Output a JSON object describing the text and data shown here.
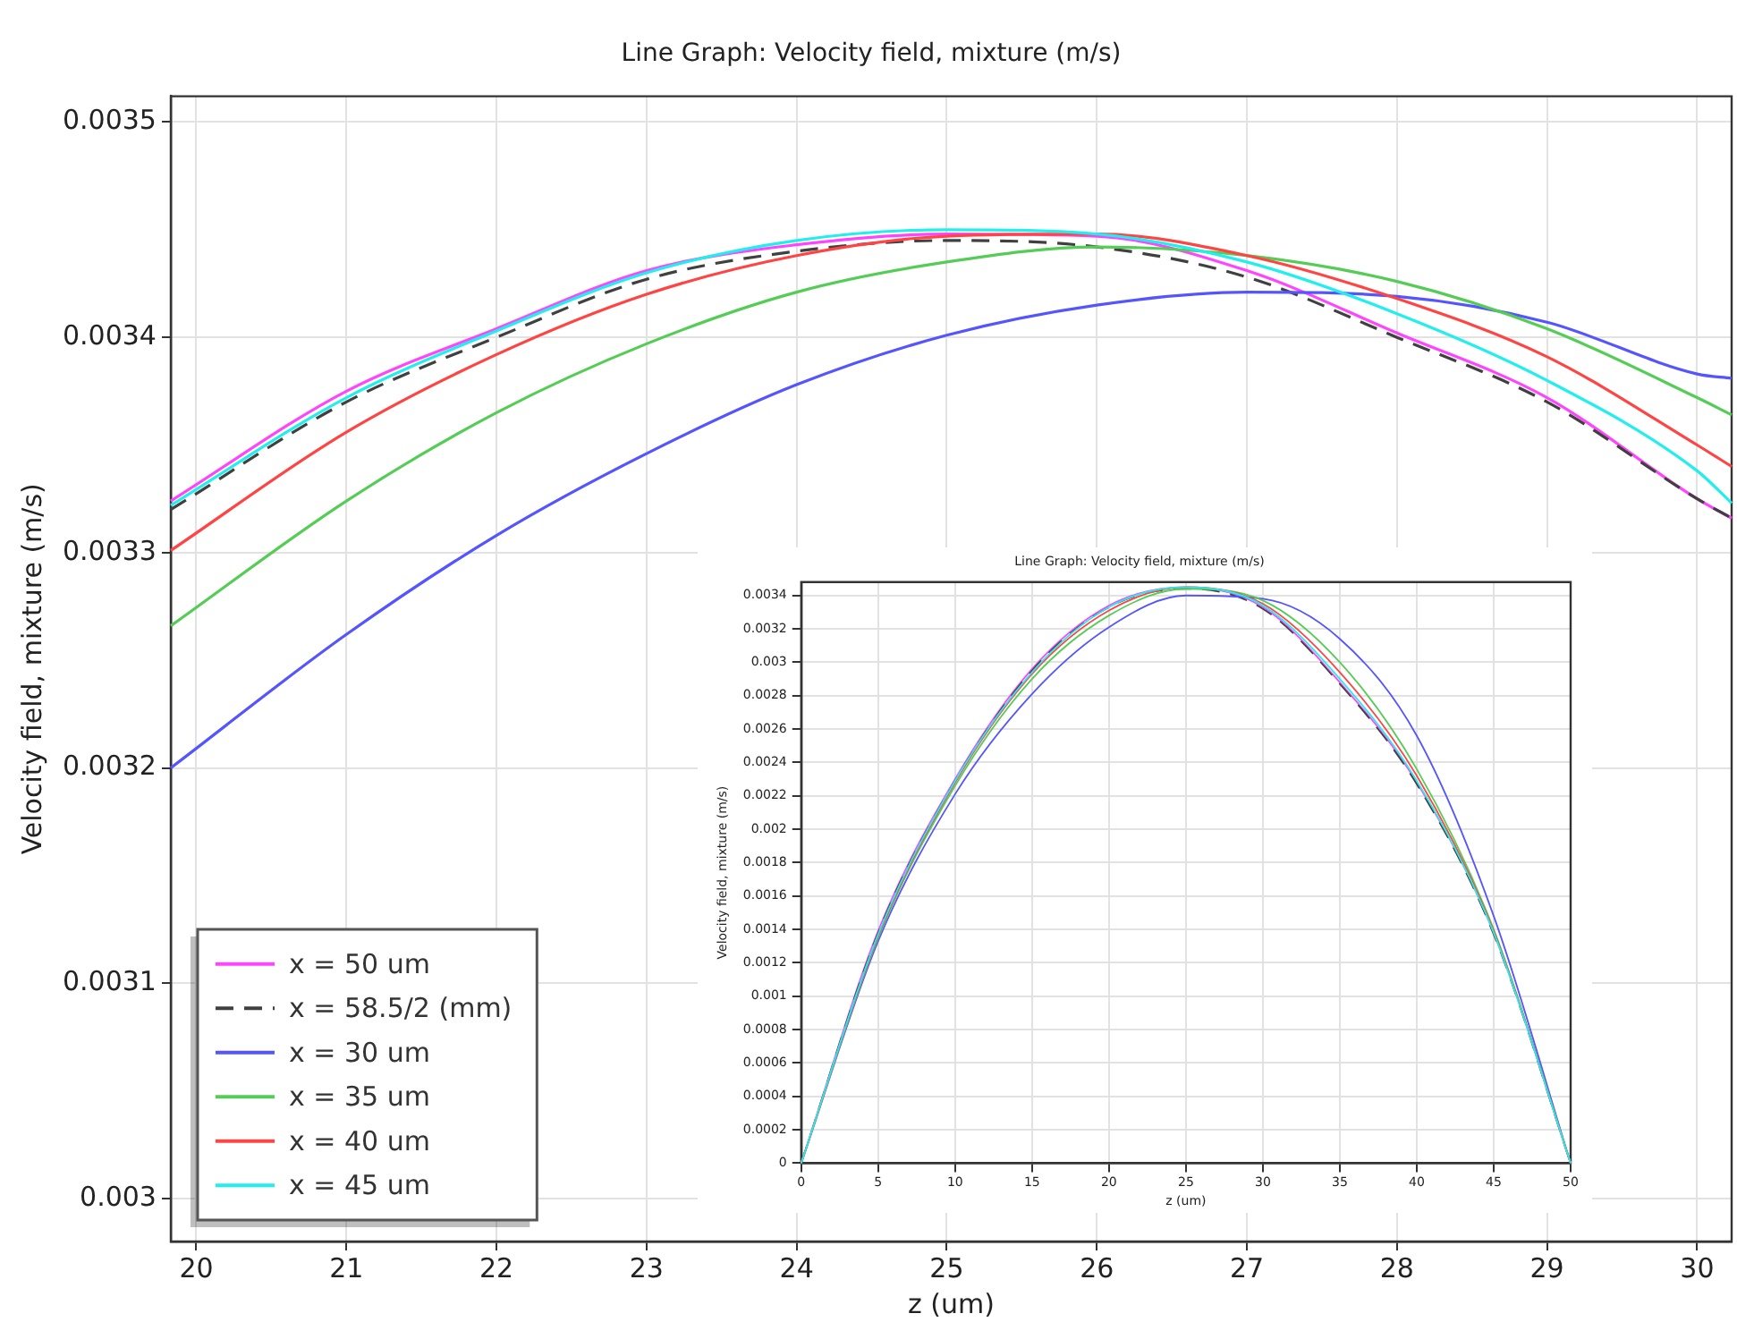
{
  "chart_data": [
    {
      "type": "line",
      "title": "Line Graph: Velocity field, mixture (m/s)",
      "xlabel": "z (um)",
      "ylabel": "Velocity field, mixture (m/s)",
      "x": [
        19.83,
        21,
        22,
        23,
        24,
        25,
        26,
        27,
        28,
        29,
        30,
        30.23
      ],
      "xlim": [
        19.83,
        30.23
      ],
      "xticks": [
        20,
        21,
        22,
        23,
        24,
        25,
        26,
        27,
        28,
        29,
        30
      ],
      "ylim": [
        0.00298,
        0.003512
      ],
      "yticks": [
        0.003,
        0.0031,
        0.0032,
        0.0033,
        0.0034,
        0.0035
      ],
      "grid": true,
      "legend": "bottom left",
      "series": [
        {
          "name": "x = 50 um",
          "color": "#ff44ff",
          "values": [
            0.003324,
            0.003375,
            0.003404,
            0.003431,
            0.003443,
            0.003448,
            0.003447,
            0.003431,
            0.003402,
            0.003372,
            0.003325,
            0.003316
          ]
        },
        {
          "name": "x = 58.5/2 (mm)",
          "color": "#404040",
          "line_style": "dashed",
          "values": [
            0.00332,
            0.00337,
            0.0034,
            0.003427,
            0.00344,
            0.003445,
            0.003442,
            0.003428,
            0.0034,
            0.00337,
            0.003325,
            0.003316
          ]
        },
        {
          "name": "x = 30 um",
          "color": "#5555ff",
          "values": [
            0.0032,
            0.003262,
            0.003308,
            0.003346,
            0.003378,
            0.003401,
            0.003415,
            0.003421,
            0.003419,
            0.003407,
            0.003383,
            0.003381
          ]
        },
        {
          "name": "x = 35 um",
          "color": "#55cc55",
          "values": [
            0.003266,
            0.003324,
            0.003365,
            0.003397,
            0.003421,
            0.003435,
            0.003442,
            0.003438,
            0.003426,
            0.003404,
            0.003372,
            0.003364
          ]
        },
        {
          "name": "x = 40 um",
          "color": "#ff4444",
          "values": [
            0.003301,
            0.003356,
            0.003392,
            0.00342,
            0.003438,
            0.003447,
            0.003448,
            0.003438,
            0.003418,
            0.003391,
            0.00335,
            0.00334
          ]
        },
        {
          "name": "x = 45 um",
          "color": "#22eeee",
          "values": [
            0.003322,
            0.003372,
            0.003403,
            0.00343,
            0.003445,
            0.00345,
            0.003448,
            0.003435,
            0.003411,
            0.00338,
            0.003338,
            0.003323
          ]
        }
      ]
    },
    {
      "type": "line",
      "title": "Line Graph: Velocity field, mixture (m/s)",
      "xlabel": "z (um)",
      "ylabel": "Velocity field, mixture (m/s)",
      "x": [
        0,
        5,
        10,
        15,
        20,
        25,
        30,
        35,
        40,
        45,
        50
      ],
      "xlim": [
        0,
        50
      ],
      "xticks": [
        0,
        5,
        10,
        15,
        20,
        25,
        30,
        35,
        40,
        45,
        50
      ],
      "ylim": [
        0,
        0.00348
      ],
      "yticks": [
        0,
        0.0002,
        0.0004,
        0.0006,
        0.0008,
        0.001,
        0.0012,
        0.0014,
        0.0016,
        0.0018,
        0.002,
        0.0022,
        0.0024,
        0.0026,
        0.0028,
        0.003,
        0.0032,
        0.0034
      ],
      "grid": true,
      "series": [
        {
          "color": "#ff44ff",
          "values": [
            0,
            0.00139,
            0.0023,
            0.00296,
            0.00334,
            0.00345,
            0.00333,
            0.00288,
            0.00228,
            0.00138,
            0
          ]
        },
        {
          "color": "#404040",
          "line_style": "dashed",
          "values": [
            0,
            0.00138,
            0.00229,
            0.00295,
            0.00333,
            0.00344,
            0.00332,
            0.00287,
            0.00227,
            0.00137,
            0
          ]
        },
        {
          "color": "#5555ff",
          "values": [
            0,
            0.00133,
            0.00221,
            0.00281,
            0.00321,
            0.0034,
            0.00338,
            0.00314,
            0.00256,
            0.00148,
            0
          ]
        },
        {
          "color": "#55cc55",
          "values": [
            0,
            0.00135,
            0.00226,
            0.0029,
            0.00328,
            0.00344,
            0.00337,
            0.003,
            0.00236,
            0.0014,
            0
          ]
        },
        {
          "color": "#ff4444",
          "values": [
            0,
            0.00136,
            0.00228,
            0.00293,
            0.00331,
            0.00345,
            0.00335,
            0.00294,
            0.00232,
            0.00139,
            0
          ]
        },
        {
          "color": "#22eeee",
          "values": [
            0,
            0.00137,
            0.00229,
            0.00294,
            0.00333,
            0.00345,
            0.00334,
            0.0029,
            0.00229,
            0.00138,
            0
          ]
        }
      ]
    }
  ]
}
